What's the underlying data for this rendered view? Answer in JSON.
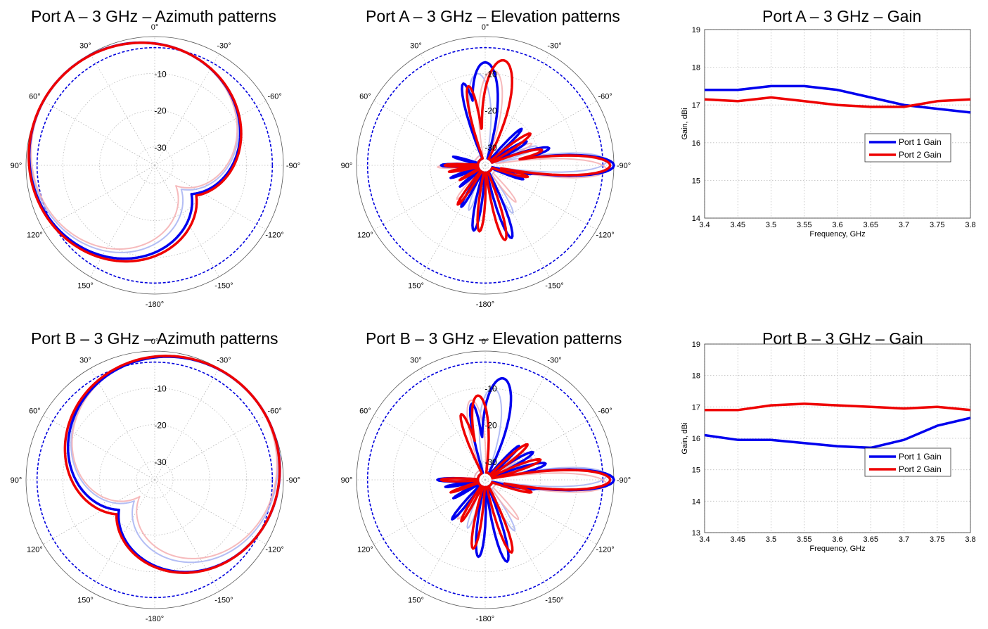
{
  "colors": {
    "port1": "#0000ee",
    "port2": "#ee0000",
    "port1_light": "#a6b2f2",
    "port2_light": "#f5aeb0",
    "ref": "#0000dd",
    "grid": "#bbbbbb"
  },
  "chart_data": [
    {
      "id": "A-az",
      "type": "polar",
      "title": "Port A – 3 GHz – Azimuth patterns",
      "angle_labels": [
        "0°",
        "30°",
        "60°",
        "90°",
        "120°",
        "150°",
        "-180°",
        "-150°",
        "-120°",
        "-90°",
        "-60°",
        "-30°"
      ],
      "radial_labels": [
        "-10",
        "-20",
        "-30"
      ],
      "rlim": [
        -35,
        0
      ],
      "reference_circle_db": -3,
      "series": [
        {
          "color": "port1",
          "width": 3.5,
          "pattern": {
            "type": "beam",
            "center": 52,
            "width3db": 66,
            "floor": -30,
            "sidelobes": [
              [
                -95,
                -29
              ],
              [
                -110,
                -30
              ],
              [
                -135,
                -32
              ]
            ]
          }
        },
        {
          "color": "port2",
          "width": 3.5,
          "pattern": {
            "type": "beam",
            "center": 54,
            "width3db": 68,
            "floor": -30,
            "sidelobes": [
              [
                -95,
                -26
              ],
              [
                -125,
                -31
              ],
              [
                -150,
                -31
              ]
            ]
          }
        },
        {
          "color": "port1_light",
          "width": 2,
          "pattern": {
            "type": "beam",
            "center": 48,
            "width3db": 62,
            "floor": -30,
            "sidelobes": [
              [
                -100,
                -28
              ]
            ]
          }
        },
        {
          "color": "port2_light",
          "width": 2,
          "pattern": {
            "type": "beam",
            "center": 46,
            "width3db": 60,
            "floor": -30,
            "sidelobes": [
              [
                -90,
                -27
              ]
            ]
          }
        }
      ]
    },
    {
      "id": "A-el",
      "type": "polar",
      "title": "Port A – 3 GHz – Elevation patterns",
      "angle_labels": [
        "0°",
        "30°",
        "60°",
        "90°",
        "120°",
        "150°",
        "-180°",
        "-150°",
        "-120°",
        "-90°",
        "-60°",
        "-30°"
      ],
      "radial_labels": [
        "-10",
        "-20",
        "-30"
      ],
      "rlim": [
        -35,
        0
      ],
      "reference_circle_db": -3,
      "series": [
        {
          "color": "port1",
          "width": 3.5,
          "pattern": {
            "type": "lobes",
            "floor": -33,
            "lobes": [
              [
                -90,
                0,
                7
              ],
              [
                -75,
                -17,
                6
              ],
              [
                -100,
                -22,
                5
              ],
              [
                -110,
                -24,
                5
              ],
              [
                -60,
                -22,
                6
              ],
              [
                -45,
                -21,
                5
              ],
              [
                0,
                -7,
                12
              ],
              [
                15,
                -12,
                6
              ],
              [
                -160,
                -14,
                6
              ],
              [
                170,
                -17,
                6
              ],
              [
                150,
                -22,
                5
              ],
              [
                110,
                -25,
                4
              ],
              [
                90,
                -23,
                5
              ],
              [
                75,
                -26,
                4
              ],
              [
                130,
                -26,
                4
              ]
            ]
          }
        },
        {
          "color": "port2",
          "width": 3.5,
          "pattern": {
            "type": "lobes",
            "floor": -33,
            "lobes": [
              [
                -90,
                -1,
                7
              ],
              [
                -75,
                -19,
                6
              ],
              [
                -105,
                -23,
                5
              ],
              [
                -55,
                -20,
                6
              ],
              [
                -10,
                -6,
                12
              ],
              [
                12,
                -13,
                6
              ],
              [
                -165,
                -14,
                6
              ],
              [
                175,
                -17,
                6
              ],
              [
                145,
                -22,
                5
              ],
              [
                100,
                -25,
                4
              ],
              [
                90,
                -24,
                5
              ],
              [
                120,
                -27,
                4
              ]
            ]
          }
        },
        {
          "color": "port1_light",
          "width": 2,
          "pattern": {
            "type": "lobes",
            "floor": -32,
            "lobes": [
              [
                -88,
                -2,
                7
              ],
              [
                -70,
                -20,
                6
              ],
              [
                5,
                -10,
                12
              ],
              [
                -150,
                -20,
                6
              ],
              [
                160,
                -22,
                6
              ],
              [
                90,
                -26,
                5
              ]
            ]
          }
        },
        {
          "color": "port2_light",
          "width": 2,
          "pattern": {
            "type": "lobes",
            "floor": -32,
            "lobes": [
              [
                -92,
                -2,
                7
              ],
              [
                -65,
                -21,
                6
              ],
              [
                -5,
                -9,
                12
              ],
              [
                -140,
                -22,
                6
              ],
              [
                140,
                -23,
                6
              ],
              [
                92,
                -22,
                5
              ]
            ]
          }
        }
      ]
    },
    {
      "id": "A-gain",
      "type": "line",
      "title": "Port A – 3 GHz – Gain",
      "xlabel": "Frequency, GHz",
      "ylabel": "Gain, dBi",
      "xlim": [
        3.4,
        3.8
      ],
      "ylim": [
        14,
        19
      ],
      "xticks": [
        3.4,
        3.45,
        3.5,
        3.55,
        3.6,
        3.65,
        3.7,
        3.75,
        3.8
      ],
      "yticks": [
        14,
        15,
        16,
        17,
        18,
        19
      ],
      "x": [
        3.4,
        3.45,
        3.5,
        3.55,
        3.6,
        3.65,
        3.7,
        3.75,
        3.8
      ],
      "series": [
        {
          "name": "Port 1 Gain",
          "color": "port1",
          "values": [
            17.4,
            17.4,
            17.5,
            17.5,
            17.4,
            17.2,
            17.0,
            16.9,
            16.8
          ]
        },
        {
          "name": "Port 2 Gain",
          "color": "port2",
          "values": [
            17.15,
            17.1,
            17.2,
            17.1,
            17.0,
            16.95,
            16.95,
            17.1,
            17.15
          ]
        }
      ],
      "legend": "lower-right"
    },
    {
      "id": "B-az",
      "type": "polar",
      "title": "Port B – 3 GHz – Azimuth patterns",
      "angle_labels": [
        "0°",
        "30°",
        "60°",
        "90°",
        "120°",
        "150°",
        "-180°",
        "-150°",
        "-120°",
        "-90°",
        "-60°",
        "-30°"
      ],
      "radial_labels": [
        "-10",
        "-20",
        "-30"
      ],
      "rlim": [
        -35,
        0
      ],
      "reference_circle_db": -3,
      "series": [
        {
          "color": "port1",
          "width": 3.5,
          "pattern": {
            "type": "beam",
            "center": -50,
            "width3db": 66,
            "floor": -30,
            "sidelobes": [
              [
                95,
                -29
              ],
              [
                120,
                -30
              ],
              [
                150,
                -31
              ]
            ]
          }
        },
        {
          "color": "port2",
          "width": 3.5,
          "pattern": {
            "type": "beam",
            "center": -48,
            "width3db": 68,
            "floor": -30,
            "sidelobes": [
              [
                100,
                -27
              ],
              [
                135,
                -31
              ],
              [
                160,
                -31
              ]
            ]
          }
        },
        {
          "color": "port1_light",
          "width": 2,
          "pattern": {
            "type": "beam",
            "center": -44,
            "width3db": 60,
            "floor": -30,
            "sidelobes": [
              [
                100,
                -28
              ]
            ]
          }
        },
        {
          "color": "port2_light",
          "width": 2,
          "pattern": {
            "type": "beam",
            "center": -42,
            "width3db": 58,
            "floor": -30,
            "sidelobes": [
              [
                90,
                -27
              ]
            ]
          }
        }
      ]
    },
    {
      "id": "B-el",
      "type": "polar",
      "title": "Port B – 3 GHz – Elevation patterns",
      "angle_labels": [
        "0°",
        "30°",
        "60°",
        "90°",
        "120°",
        "150°",
        "-180°",
        "-150°",
        "-120°",
        "-90°",
        "-60°",
        "-30°"
      ],
      "radial_labels": [
        "-10",
        "-20",
        "-30"
      ],
      "rlim": [
        -35,
        0
      ],
      "reference_circle_db": -3,
      "series": [
        {
          "color": "port1",
          "width": 3.5,
          "pattern": {
            "type": "lobes",
            "floor": -33,
            "lobes": [
              [
                -90,
                0,
                7
              ],
              [
                -75,
                -18,
                6
              ],
              [
                -100,
                -21,
                5
              ],
              [
                -60,
                -20,
                6
              ],
              [
                -45,
                -22,
                5
              ],
              [
                -10,
                -7,
                12
              ],
              [
                10,
                -14,
                6
              ],
              [
                -165,
                -12,
                6
              ],
              [
                175,
                -14,
                6
              ],
              [
                140,
                -21,
                5
              ],
              [
                100,
                -24,
                4
              ],
              [
                90,
                -22,
                5
              ],
              [
                120,
                -25,
                4
              ]
            ]
          }
        },
        {
          "color": "port2",
          "width": 3.5,
          "pattern": {
            "type": "lobes",
            "floor": -33,
            "lobes": [
              [
                -90,
                -1,
                7
              ],
              [
                -70,
                -19,
                6
              ],
              [
                -105,
                -22,
                5
              ],
              [
                -50,
                -20,
                6
              ],
              [
                5,
                -12,
                10
              ],
              [
                20,
                -16,
                6
              ],
              [
                -160,
                -14,
                6
              ],
              [
                170,
                -16,
                6
              ],
              [
                150,
                -22,
                5
              ],
              [
                110,
                -25,
                4
              ],
              [
                90,
                -23,
                5
              ]
            ]
          }
        },
        {
          "color": "port1_light",
          "width": 2,
          "pattern": {
            "type": "lobes",
            "floor": -32,
            "lobes": [
              [
                -88,
                -2,
                7
              ],
              [
                -65,
                -21,
                6
              ],
              [
                -5,
                -10,
                12
              ],
              [
                -150,
                -19,
                6
              ],
              [
                160,
                -21,
                6
              ],
              [
                92,
                -25,
                5
              ]
            ]
          }
        },
        {
          "color": "port2_light",
          "width": 2,
          "pattern": {
            "type": "lobes",
            "floor": -32,
            "lobes": [
              [
                -92,
                -2,
                7
              ],
              [
                -55,
                -22,
                6
              ],
              [
                10,
                -13,
                10
              ],
              [
                -140,
                -21,
                6
              ],
              [
                145,
                -22,
                6
              ],
              [
                88,
                -24,
                5
              ]
            ]
          }
        }
      ]
    },
    {
      "id": "B-gain",
      "type": "line",
      "title": "Port B – 3 GHz – Gain",
      "xlabel": "Frequency, GHz",
      "ylabel": "Gain, dBi",
      "xlim": [
        3.4,
        3.8
      ],
      "ylim": [
        13,
        19
      ],
      "xticks": [
        3.4,
        3.45,
        3.5,
        3.55,
        3.6,
        3.65,
        3.7,
        3.75,
        3.8
      ],
      "yticks": [
        13,
        14,
        15,
        16,
        17,
        18,
        19
      ],
      "x": [
        3.4,
        3.45,
        3.5,
        3.55,
        3.6,
        3.65,
        3.7,
        3.75,
        3.8
      ],
      "series": [
        {
          "name": "Port 1 Gain",
          "color": "port1",
          "values": [
            16.1,
            15.95,
            15.95,
            15.85,
            15.75,
            15.7,
            15.95,
            16.4,
            16.65
          ]
        },
        {
          "name": "Port 2 Gain",
          "color": "port2",
          "values": [
            16.9,
            16.9,
            17.05,
            17.1,
            17.05,
            17.0,
            16.95,
            17.0,
            16.9
          ]
        }
      ],
      "legend": "lower-right"
    }
  ]
}
